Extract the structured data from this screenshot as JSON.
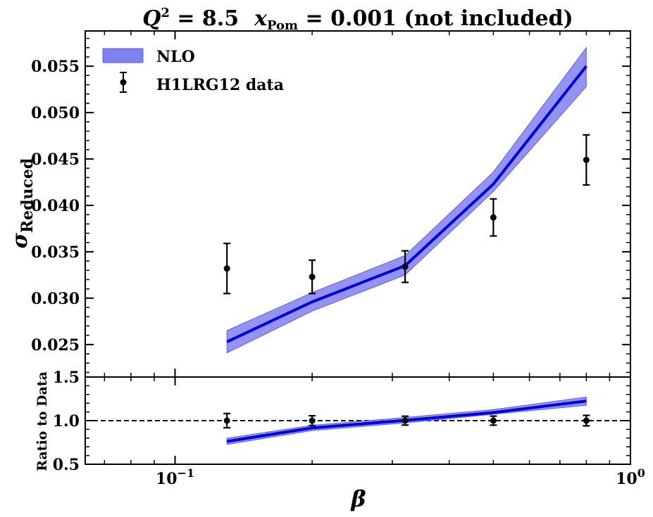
{
  "title": {
    "q2_symbol": "Q",
    "q2_exp": "2",
    "q2_value": " = 8.5",
    "x_symbol": "x",
    "x_sub": "Pom",
    "x_value": " = 0.001 (not included)"
  },
  "chart_data": [
    {
      "type": "line",
      "ylabel": "σ",
      "ylabel_sub": "Reduced",
      "ylim": [
        0.0215,
        0.0588
      ],
      "xlim": [
        0.0635,
        1.0
      ],
      "xscale": "log",
      "yticks": [
        "0.025",
        "0.030",
        "0.035",
        "0.040",
        "0.045",
        "0.050",
        "0.055"
      ],
      "ytick_values": [
        0.025,
        0.03,
        0.035,
        0.04,
        0.045,
        0.05,
        0.055
      ],
      "x": [
        0.13,
        0.2,
        0.32,
        0.5,
        0.8
      ],
      "series": [
        {
          "name": "NLO",
          "kind": "band",
          "values": [
            0.0253,
            0.0296,
            0.0335,
            0.0423,
            0.055
          ],
          "lower": [
            0.0241,
            0.0286,
            0.0325,
            0.0415,
            0.0528
          ],
          "upper": [
            0.0265,
            0.0306,
            0.0346,
            0.0436,
            0.057
          ],
          "color": "#0000dd",
          "band_color": "#8080f2"
        },
        {
          "name": "H1LRG12 data",
          "kind": "errorbar",
          "values": [
            0.0332,
            0.0323,
            0.0334,
            0.0387,
            0.0449
          ],
          "errors": [
            0.0027,
            0.0018,
            0.0017,
            0.002,
            0.0027
          ],
          "color": "#000000"
        }
      ],
      "legend": "top-left",
      "grid": false
    },
    {
      "type": "line",
      "ylabel": "Ratio to Data",
      "xlabel": "β",
      "ylim": [
        0.5,
        1.5
      ],
      "xlim": [
        0.0635,
        1.0
      ],
      "xscale": "log",
      "yticks": [
        "0.5",
        "1.0",
        "1.5"
      ],
      "ytick_values": [
        0.5,
        1.0,
        1.5
      ],
      "xtick_base": "10",
      "xticks": [
        {
          "value": 0.1,
          "exp": "−1"
        },
        {
          "value": 1.0,
          "exp": "0"
        }
      ],
      "x": [
        0.13,
        0.2,
        0.32,
        0.5,
        0.8
      ],
      "reference_line": 1.0,
      "series": [
        {
          "name": "NLO",
          "kind": "band",
          "values": [
            0.762,
            0.916,
            1.003,
            1.093,
            1.225
          ],
          "lower": [
            0.727,
            0.886,
            0.973,
            1.073,
            1.176
          ],
          "upper": [
            0.798,
            0.947,
            1.036,
            1.127,
            1.27
          ],
          "color": "#0000dd",
          "band_color": "#8080f2"
        },
        {
          "name": "H1LRG12 data",
          "kind": "errorbar",
          "values": [
            1.0,
            1.0,
            1.0,
            1.0,
            1.0
          ],
          "errors": [
            0.082,
            0.056,
            0.051,
            0.052,
            0.06
          ],
          "color": "#000000"
        }
      ],
      "grid": false
    }
  ]
}
